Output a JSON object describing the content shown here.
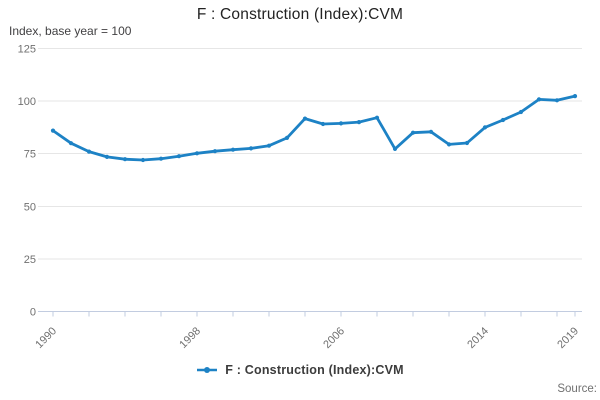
{
  "header": {
    "title": "F : Construction (Index):CVM",
    "y_axis_title": "Index, base year = 100"
  },
  "legend": {
    "label": "F : Construction (Index):CVM",
    "marker_icon": "line-dot-icon"
  },
  "footer": {
    "source_label": "Source:"
  },
  "colors": {
    "series": "#1d82c5",
    "axis": "#c2cce0",
    "grid": "#e6e6e6",
    "tick_label": "#707070",
    "title": "#222222",
    "subtitle": "#414042",
    "legend_text": "#3c3c3c",
    "source": "#707070"
  },
  "chart_data": {
    "type": "line",
    "title": "F : Construction (Index):CVM",
    "ylabel": "Index, base year = 100",
    "x": [
      1990,
      1991,
      1992,
      1993,
      1994,
      1995,
      1996,
      1997,
      1998,
      1999,
      2000,
      2001,
      2002,
      2003,
      2004,
      2005,
      2006,
      2007,
      2008,
      2009,
      2010,
      2011,
      2012,
      2013,
      2014,
      2015,
      2016,
      2017,
      2018,
      2019
    ],
    "series": [
      {
        "name": "F : Construction (Index):CVM",
        "values": [
          86.0,
          80.0,
          76.0,
          73.5,
          72.4,
          72.0,
          72.6,
          73.8,
          75.2,
          76.2,
          76.9,
          77.5,
          78.8,
          82.5,
          91.7,
          89.1,
          89.4,
          90.0,
          92.1,
          77.3,
          85.0,
          85.4,
          79.4,
          80.1,
          87.5,
          91.0,
          94.8,
          100.8,
          100.4,
          102.4
        ]
      }
    ],
    "ylim": [
      0,
      125
    ],
    "yticks": [
      0,
      25,
      50,
      75,
      100,
      125
    ],
    "x_tick_step": 2,
    "x_labeled_ticks": [
      1990,
      1998,
      2006,
      2014,
      2019
    ],
    "grid": "horizontal-only",
    "legend_position": "bottom-center",
    "marker": "circle"
  }
}
